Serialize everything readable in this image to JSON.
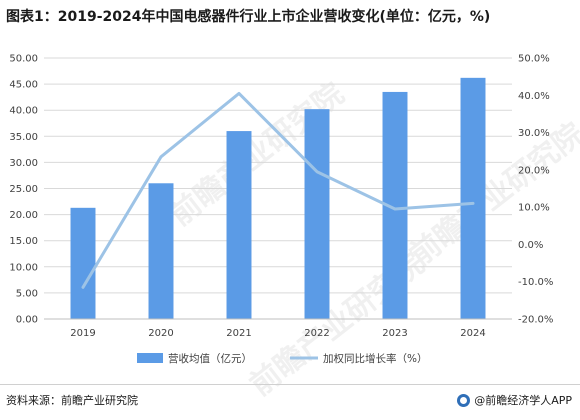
{
  "title": "图表1：2019-2024年中国电感器件行业上市企业营收变化(单位：亿元，%)",
  "source": "资料来源：前瞻产业研究院",
  "brand": "@前瞻经济学人APP",
  "watermark": "前瞻产业研究院",
  "colors": {
    "bar": "#5b9be6",
    "line": "#9dc3e6",
    "grid": "#d9d9d9"
  },
  "chart_data": {
    "type": "bar",
    "categories": [
      "2019",
      "2020",
      "2021",
      "2022",
      "2023",
      "2024"
    ],
    "series": [
      {
        "name": "营收均值（亿元）",
        "type": "bar",
        "axis": "left",
        "values": [
          21.3,
          26.0,
          36.0,
          40.2,
          43.5,
          46.2
        ]
      },
      {
        "name": "加权同比增长率（%）",
        "type": "line",
        "axis": "right",
        "values": [
          -11.5,
          23.5,
          40.5,
          19.5,
          9.5,
          11.0
        ]
      }
    ],
    "ylim_left": [
      0,
      50
    ],
    "yticks_left": [
      "0.00",
      "5.00",
      "10.00",
      "15.00",
      "20.00",
      "25.00",
      "30.00",
      "35.00",
      "40.00",
      "45.00",
      "50.00"
    ],
    "ylim_right": [
      -20,
      50
    ],
    "yticks_right": [
      "-20.0%",
      "-10.0%",
      "0.0%",
      "10.0%",
      "20.0%",
      "30.0%",
      "40.0%",
      "50.0%"
    ],
    "grid": true,
    "legend_position": "bottom"
  }
}
